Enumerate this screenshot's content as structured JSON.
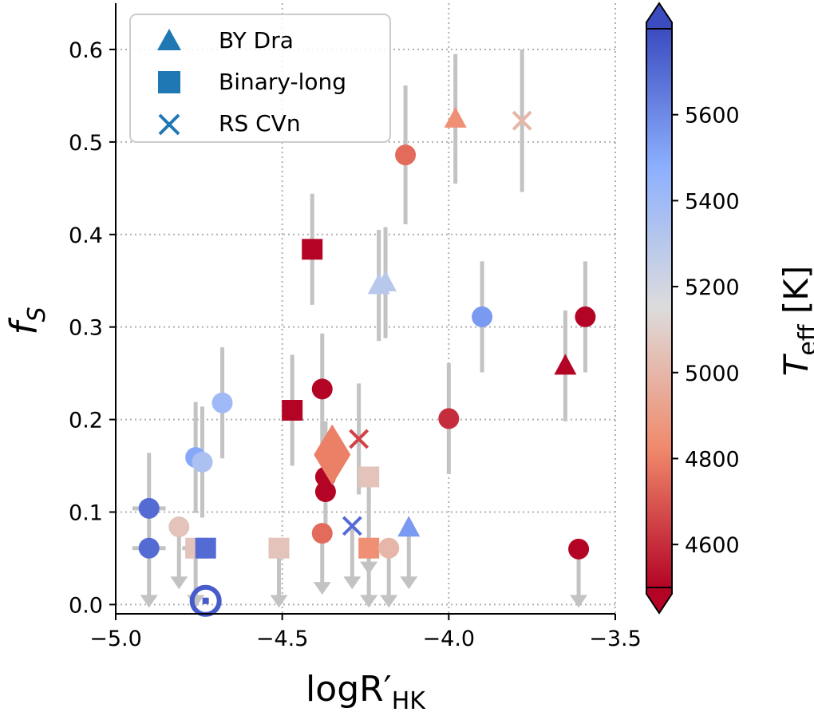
{
  "chart_data": {
    "type": "scatter",
    "title": "",
    "xlabel_parts": {
      "base": "logR",
      "prime": "′",
      "sub": "HK"
    },
    "ylabel_parts": {
      "base": "f",
      "sub": "S"
    },
    "xlim": [
      -5.0,
      -3.5
    ],
    "ylim": [
      -0.01,
      0.65
    ],
    "xticks": [
      -5.0,
      -4.5,
      -4.0,
      -3.5
    ],
    "xtick_labels": [
      "−5.0",
      "−4.5",
      "−4.0",
      "−3.5"
    ],
    "yticks": [
      0.0,
      0.1,
      0.2,
      0.3,
      0.4,
      0.5,
      0.6
    ],
    "ytick_labels": [
      "0.0",
      "0.1",
      "0.2",
      "0.3",
      "0.4",
      "0.5",
      "0.6"
    ],
    "grid": true,
    "legend": {
      "placement": "top-left",
      "entries": [
        {
          "marker": "triangle",
          "label": "BY Dra"
        },
        {
          "marker": "square",
          "label": "Binary-long"
        },
        {
          "marker": "cross",
          "label": "RS CVn"
        }
      ],
      "color": "#1f77b4"
    },
    "colorbar": {
      "label_parts": {
        "base": "T",
        "sub": "eff",
        "unit": " [K]"
      },
      "vmin": 4500,
      "vmax": 5800,
      "ticks": [
        4600,
        4800,
        5000,
        5200,
        5400,
        5600
      ],
      "tick_labels": [
        "4600",
        "4800",
        "5000",
        "5200",
        "5400",
        "5600"
      ],
      "colormap": "coolwarm_r",
      "extend": "both"
    },
    "points": [
      {
        "marker": "circle",
        "x": -4.9,
        "y": 0.104,
        "teff": 5700,
        "err_y": [
          0.04,
          0.06
        ],
        "err_x": 0.05
      },
      {
        "marker": "circle",
        "x": -4.9,
        "y": 0.061,
        "teff": 5700,
        "err_x": 0.05
      },
      {
        "marker": "circle",
        "x": -4.81,
        "y": 0.084,
        "teff": 5050,
        "err_x": 0.03
      },
      {
        "marker": "circle",
        "x": -4.76,
        "y": 0.159,
        "teff": 5500,
        "err_y": [
          0.06,
          0.06
        ],
        "err_x": 0.03
      },
      {
        "marker": "circle",
        "x": -4.74,
        "y": 0.154,
        "teff": 5350,
        "err_y": [
          0.06,
          0.06
        ]
      },
      {
        "marker": "circle",
        "x": -4.68,
        "y": 0.218,
        "teff": 5400,
        "err_y": [
          0.06,
          0.06
        ]
      },
      {
        "marker": "square",
        "x": -4.76,
        "y": 0.061,
        "teff": 5050,
        "err_x": 0.04
      },
      {
        "marker": "square",
        "x": -4.73,
        "y": 0.061,
        "teff": 5700,
        "err_x": 0.03
      },
      {
        "marker": "ring",
        "x": -4.73,
        "y": 0.004,
        "teff": 5750
      },
      {
        "marker": "square",
        "x": -4.51,
        "y": 0.061,
        "teff": 5050
      },
      {
        "marker": "square",
        "x": -4.41,
        "y": 0.384,
        "teff": 4500,
        "err_y": [
          0.06,
          0.06
        ]
      },
      {
        "marker": "square",
        "x": -4.47,
        "y": 0.21,
        "teff": 4500,
        "err_y": [
          0.06,
          0.06
        ]
      },
      {
        "marker": "circle",
        "x": -4.38,
        "y": 0.233,
        "teff": 4500,
        "err_y": [
          0.06,
          0.06
        ]
      },
      {
        "marker": "circle",
        "x": -4.37,
        "y": 0.138,
        "teff": 4500,
        "err_y": [
          0.06,
          0.06
        ]
      },
      {
        "marker": "circle",
        "x": -4.37,
        "y": 0.122,
        "teff": 4500
      },
      {
        "marker": "circle",
        "x": -4.38,
        "y": 0.077,
        "teff": 4750
      },
      {
        "marker": "diamond",
        "x": -4.35,
        "y": 0.162,
        "teff": 4800
      },
      {
        "marker": "cross",
        "x": -4.27,
        "y": 0.179,
        "teff": 4650,
        "err_y": [
          0.06,
          0.06
        ]
      },
      {
        "marker": "cross",
        "x": -4.29,
        "y": 0.085,
        "teff": 5700
      },
      {
        "marker": "square",
        "x": -4.24,
        "y": 0.138,
        "teff": 5050
      },
      {
        "marker": "square",
        "x": -4.24,
        "y": 0.061,
        "teff": 4850
      },
      {
        "marker": "circle",
        "x": -4.18,
        "y": 0.061,
        "teff": 5000
      },
      {
        "marker": "triangle",
        "x": -4.21,
        "y": 0.345,
        "teff": 5300,
        "err_y": [
          0.06,
          0.06
        ]
      },
      {
        "marker": "triangle",
        "x": -4.19,
        "y": 0.348,
        "teff": 5300,
        "err_y": [
          0.06,
          0.06
        ]
      },
      {
        "marker": "triangle",
        "x": -4.12,
        "y": 0.083,
        "teff": 5550
      },
      {
        "marker": "circle",
        "x": -4.13,
        "y": 0.486,
        "teff": 4750,
        "err_y": [
          0.075,
          0.075
        ]
      },
      {
        "marker": "triangle",
        "x": -3.98,
        "y": 0.525,
        "teff": 4850,
        "err_y": [
          0.07,
          0.07
        ]
      },
      {
        "marker": "circle",
        "x": -4.0,
        "y": 0.201,
        "teff": 4600,
        "err_y": [
          0.06,
          0.06
        ]
      },
      {
        "marker": "circle",
        "x": -3.9,
        "y": 0.311,
        "teff": 5550,
        "err_y": [
          0.06,
          0.06
        ]
      },
      {
        "marker": "cross",
        "x": -3.78,
        "y": 0.523,
        "teff": 5000,
        "err_y": [
          0.077,
          0.077
        ]
      },
      {
        "marker": "triangle",
        "x": -3.65,
        "y": 0.258,
        "teff": 4500,
        "err_y": [
          0.06,
          0.06
        ]
      },
      {
        "marker": "circle",
        "x": -3.59,
        "y": 0.311,
        "teff": 4500,
        "err_y": [
          0.06,
          0.06
        ]
      },
      {
        "marker": "circle",
        "x": -3.61,
        "y": 0.06,
        "teff": 4500
      }
    ],
    "upper_limits": [
      {
        "x": -4.9,
        "y_from": 0.061,
        "y_to": 0.0
      },
      {
        "x": -4.81,
        "y_from": 0.084,
        "y_to": 0.02
      },
      {
        "x": -4.76,
        "y_from": 0.061,
        "y_to": 0.0
      },
      {
        "x": -4.51,
        "y_from": 0.061,
        "y_to": 0.0
      },
      {
        "x": -4.38,
        "y_from": 0.077,
        "y_to": 0.014
      },
      {
        "x": -4.29,
        "y_from": 0.085,
        "y_to": 0.02
      },
      {
        "x": -4.24,
        "y_from": 0.138,
        "y_to": 0.036
      },
      {
        "x": -4.24,
        "y_from": 0.061,
        "y_to": 0.0
      },
      {
        "x": -4.18,
        "y_from": 0.061,
        "y_to": 0.0
      },
      {
        "x": -4.12,
        "y_from": 0.083,
        "y_to": 0.02
      },
      {
        "x": -3.61,
        "y_from": 0.06,
        "y_to": 0.0
      }
    ]
  }
}
